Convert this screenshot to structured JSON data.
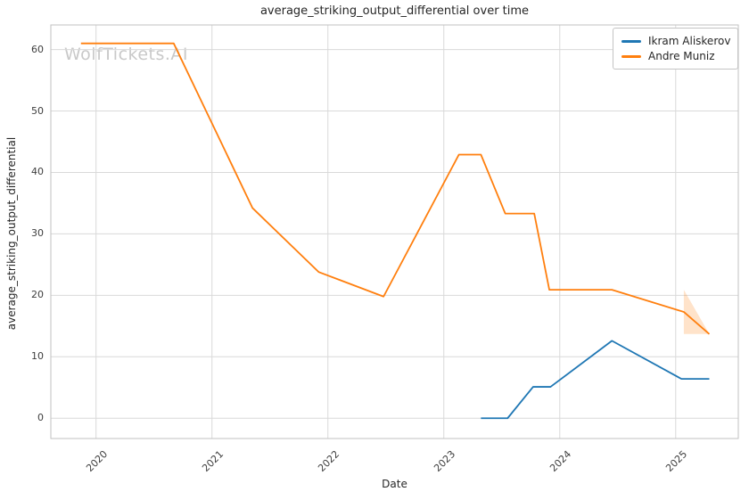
{
  "figure": {
    "watermark": "WolfTickets.AI"
  },
  "colors": {
    "background": "#ffffff",
    "grid": "#d9d9d9",
    "spine": "#c2c2c2",
    "tick_label": "#3d3d3d",
    "text": "#262626",
    "watermark": "#c9c9c9",
    "series_blue": "#1f77b4",
    "series_orange": "#ff7f0e"
  },
  "chart_data": {
    "type": "line",
    "title": "average_striking_output_differential over time",
    "xlabel": "Date",
    "ylabel": "average_striking_output_differential",
    "xlim": [
      2019.61,
      2025.54
    ],
    "ylim": [
      -3.3,
      64.0
    ],
    "x_ticks": [
      2020,
      2021,
      2022,
      2023,
      2024,
      2025
    ],
    "x_tick_labels": [
      "2020",
      "2021",
      "2022",
      "2023",
      "2024",
      "2025"
    ],
    "y_ticks": [
      0,
      10,
      20,
      30,
      40,
      50,
      60
    ],
    "grid": true,
    "legend_position": "upper right",
    "series": [
      {
        "name": "Ikram Aliskerov",
        "color": "#1f77b4",
        "points": [
          [
            2023.32,
            0
          ],
          [
            2023.55,
            0
          ],
          [
            2023.77,
            5.1
          ],
          [
            2023.92,
            5.1
          ],
          [
            2024.45,
            12.6
          ],
          [
            2025.05,
            6.4
          ],
          [
            2025.29,
            6.4
          ]
        ]
      },
      {
        "name": "Andre Muniz",
        "color": "#ff7f0e",
        "points": [
          [
            2019.87,
            61
          ],
          [
            2020.67,
            61
          ],
          [
            2021.35,
            34.2
          ],
          [
            2021.92,
            23.8
          ],
          [
            2022.48,
            19.8
          ],
          [
            2023.13,
            42.9
          ],
          [
            2023.32,
            42.9
          ],
          [
            2023.53,
            33.3
          ],
          [
            2023.78,
            33.3
          ],
          [
            2023.91,
            20.9
          ],
          [
            2024.45,
            20.9
          ],
          [
            2025.07,
            17.3
          ],
          [
            2025.29,
            13.7
          ]
        ]
      }
    ],
    "band": {
      "series": "Andre Muniz",
      "color": "#ff7f0e",
      "opacity": 0.22,
      "points": [
        [
          2025.07,
          20.9
        ],
        [
          2025.29,
          13.7
        ],
        [
          2025.07,
          13.7
        ]
      ]
    }
  }
}
